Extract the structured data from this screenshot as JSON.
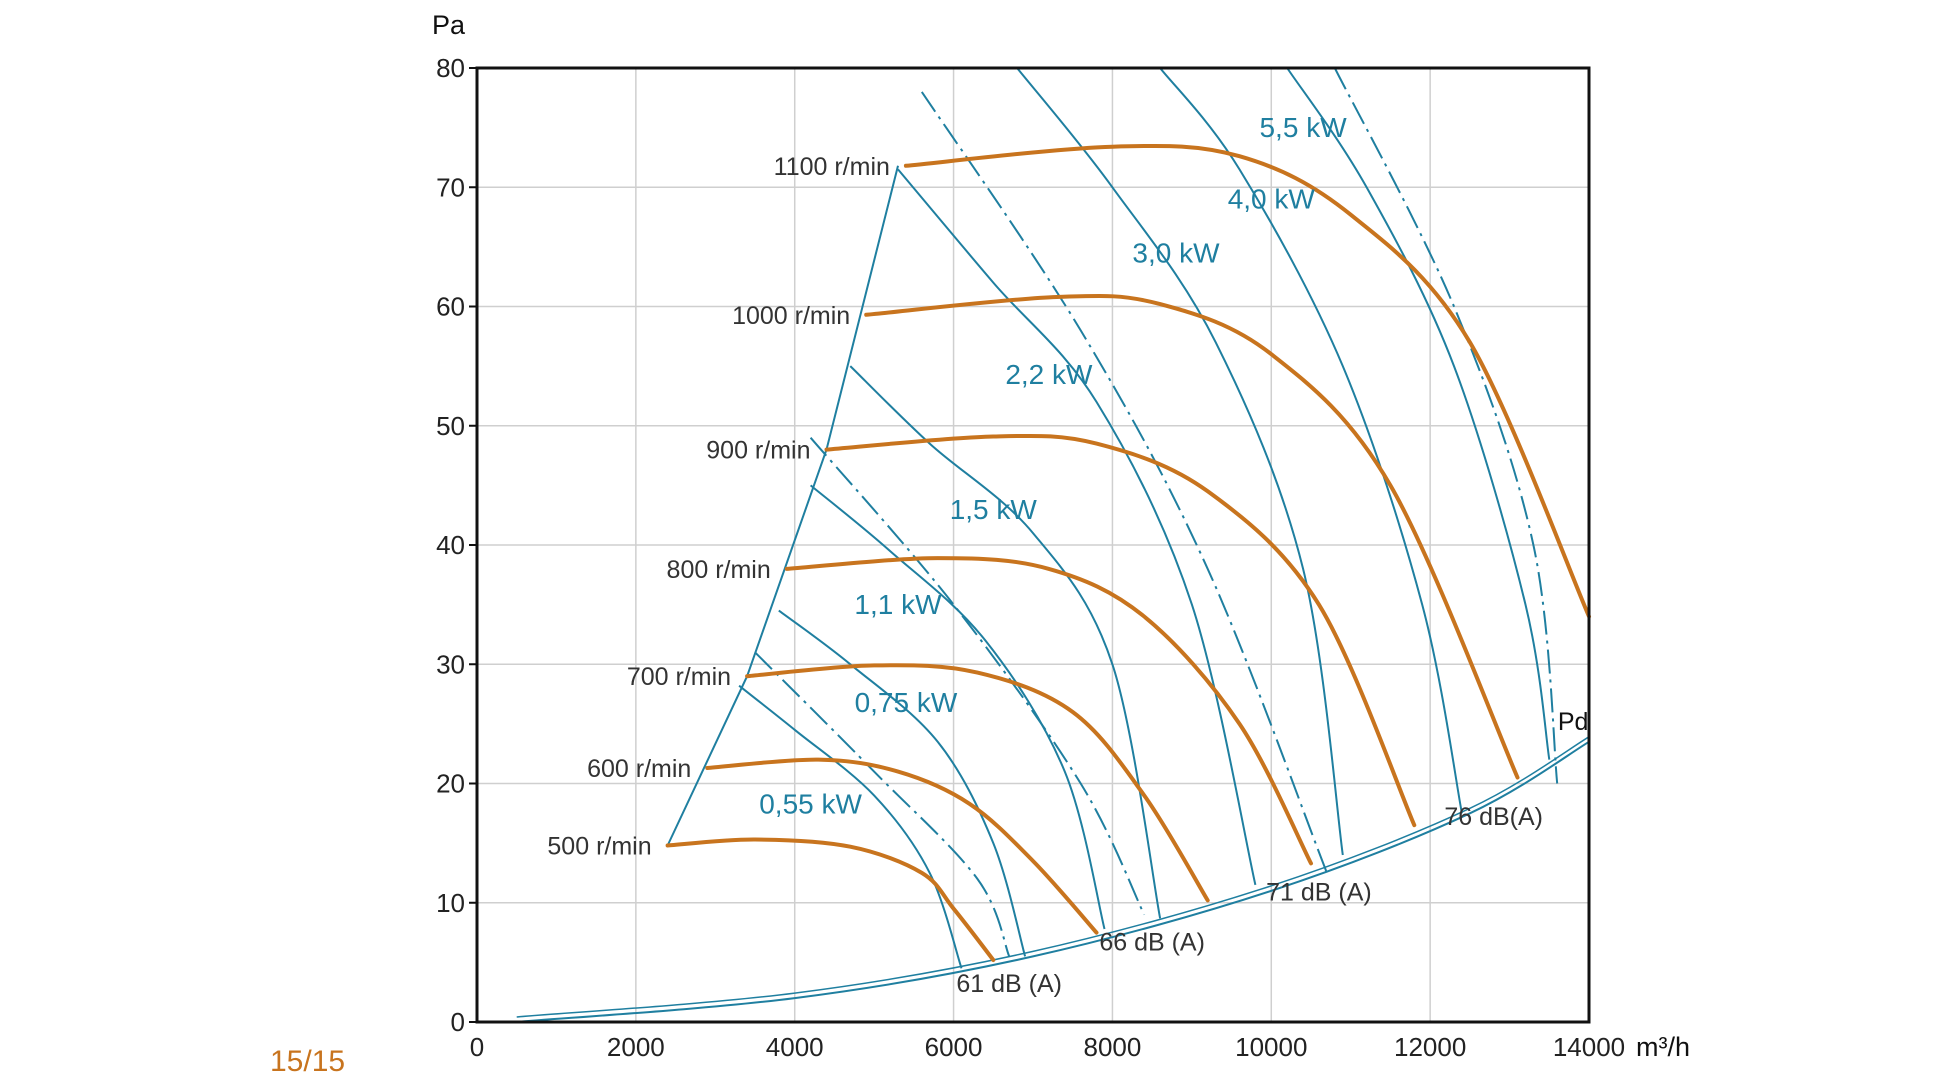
{
  "page_number": "15/15",
  "colors": {
    "speed_curve": "#c8741e",
    "power_curve": "#1f7fa0",
    "grid": "#cfcfcf",
    "frame": "#111111"
  },
  "chart_data": {
    "type": "line",
    "title": "",
    "xlabel": "m³/h",
    "ylabel": "Pa",
    "xlim": [
      0,
      14000
    ],
    "ylim": [
      0,
      80
    ],
    "x_ticks": [
      "0",
      "2000",
      "4000",
      "6000",
      "8000",
      "10000",
      "12000",
      "14000"
    ],
    "y_ticks": [
      "0",
      "10",
      "20",
      "30",
      "40",
      "50",
      "60",
      "70",
      "80"
    ],
    "grid": true,
    "speed_curves": [
      {
        "name": "500 r/min",
        "points": [
          [
            2400,
            14.8
          ],
          [
            3500,
            15.3
          ],
          [
            4700,
            14.7
          ],
          [
            5600,
            12.5
          ],
          [
            6000,
            9.5
          ],
          [
            6500,
            5.2
          ]
        ]
      },
      {
        "name": "600 r/min",
        "points": [
          [
            2900,
            21.3
          ],
          [
            4300,
            22
          ],
          [
            5300,
            21
          ],
          [
            6200,
            18.3
          ],
          [
            7000,
            13.5
          ],
          [
            7800,
            7.5
          ]
        ]
      },
      {
        "name": "700 r/min",
        "points": [
          [
            3400,
            29
          ],
          [
            5000,
            29.9
          ],
          [
            6300,
            29.3
          ],
          [
            7500,
            26
          ],
          [
            8400,
            19
          ],
          [
            9200,
            10.2
          ]
        ]
      },
      {
        "name": "800 r/min",
        "points": [
          [
            3900,
            38
          ],
          [
            5800,
            38.9
          ],
          [
            7200,
            38
          ],
          [
            8400,
            34
          ],
          [
            9600,
            25
          ],
          [
            10500,
            13.3
          ]
        ]
      },
      {
        "name": "900 r/min",
        "points": [
          [
            4400,
            48
          ],
          [
            6500,
            49.1
          ],
          [
            7800,
            48.5
          ],
          [
            9200,
            44.5
          ],
          [
            10600,
            35
          ],
          [
            11800,
            16.5
          ]
        ]
      },
      {
        "name": "1000 r/min",
        "points": [
          [
            4900,
            59.3
          ],
          [
            7300,
            60.8
          ],
          [
            8600,
            60.2
          ],
          [
            10000,
            56
          ],
          [
            11500,
            45
          ],
          [
            13100,
            20.5
          ]
        ]
      },
      {
        "name": "1100 r/min",
        "points": [
          [
            5400,
            71.8
          ],
          [
            8000,
            73.4
          ],
          [
            9600,
            72.6
          ],
          [
            11000,
            67.7
          ],
          [
            12500,
            57
          ],
          [
            14000,
            34
          ]
        ]
      }
    ],
    "power_lines": [
      {
        "name": "0,55 kW",
        "points": [
          [
            3300,
            28.2
          ],
          [
            4000,
            24.5
          ],
          [
            5000,
            19
          ],
          [
            5700,
            12.5
          ],
          [
            6100,
            4.5
          ]
        ]
      },
      {
        "name": "0,75 kW",
        "points": [
          [
            3800,
            34.5
          ],
          [
            4700,
            30
          ],
          [
            5800,
            23.5
          ],
          [
            6500,
            15
          ],
          [
            6900,
            5.5
          ]
        ]
      },
      {
        "name": "1,1 kW",
        "points": [
          [
            4200,
            45
          ],
          [
            5200,
            39.5
          ],
          [
            6400,
            32
          ],
          [
            7400,
            21
          ],
          [
            7900,
            7.8
          ]
        ]
      },
      {
        "name": "1,5 kW",
        "points": [
          [
            4700,
            55
          ],
          [
            5700,
            48.5
          ],
          [
            7000,
            41
          ],
          [
            8000,
            30
          ],
          [
            8600,
            8.7
          ]
        ]
      },
      {
        "name": "2,2 kW",
        "points": [
          [
            5300,
            71.5
          ],
          [
            6500,
            62
          ],
          [
            7800,
            52
          ],
          [
            9000,
            35
          ],
          [
            9800,
            11.5
          ]
        ]
      },
      {
        "name": "3,0 kW",
        "points": [
          [
            6800,
            80
          ],
          [
            8000,
            70
          ],
          [
            9300,
            57
          ],
          [
            10400,
            38
          ],
          [
            10900,
            14
          ]
        ]
      },
      {
        "name": "4,0 kW",
        "points": [
          [
            8600,
            80
          ],
          [
            9600,
            71.5
          ],
          [
            10900,
            55
          ],
          [
            11900,
            35
          ],
          [
            12400,
            17.5
          ]
        ]
      },
      {
        "name": "5,5 kW",
        "points": [
          [
            10200,
            80
          ],
          [
            11200,
            70
          ],
          [
            12300,
            55
          ],
          [
            13200,
            35
          ],
          [
            13500,
            22
          ]
        ]
      }
    ],
    "noise_lines": [
      {
        "name": "61 dB (A)",
        "points": [
          [
            3500,
            31
          ],
          [
            5000,
            21
          ],
          [
            6300,
            12
          ],
          [
            6700,
            5.5
          ]
        ]
      },
      {
        "name": "66 dB (A)",
        "points": [
          [
            4200,
            49
          ],
          [
            6000,
            35
          ],
          [
            7600,
            20
          ],
          [
            8400,
            9
          ]
        ]
      },
      {
        "name": "71 dB (A)",
        "points": [
          [
            5600,
            78
          ],
          [
            7600,
            58
          ],
          [
            9200,
            38
          ],
          [
            10700,
            12.5
          ]
        ]
      },
      {
        "name": "76 dB(A)",
        "points": [
          [
            10800,
            80
          ],
          [
            12300,
            60
          ],
          [
            13300,
            40
          ],
          [
            13600,
            20
          ]
        ]
      }
    ],
    "limit_line": {
      "points": [
        [
          2400,
          14.8
        ],
        [
          3400,
          29
        ],
        [
          4400,
          48
        ],
        [
          5300,
          71.8
        ]
      ]
    },
    "pd_curve": {
      "name": "Pd",
      "points": [
        [
          500,
          0
        ],
        [
          4000,
          2
        ],
        [
          7000,
          5.5
        ],
        [
          10000,
          11
        ],
        [
          12500,
          17.5
        ],
        [
          14000,
          23.5
        ]
      ]
    },
    "dynamic_pressure_label": "Pd"
  }
}
